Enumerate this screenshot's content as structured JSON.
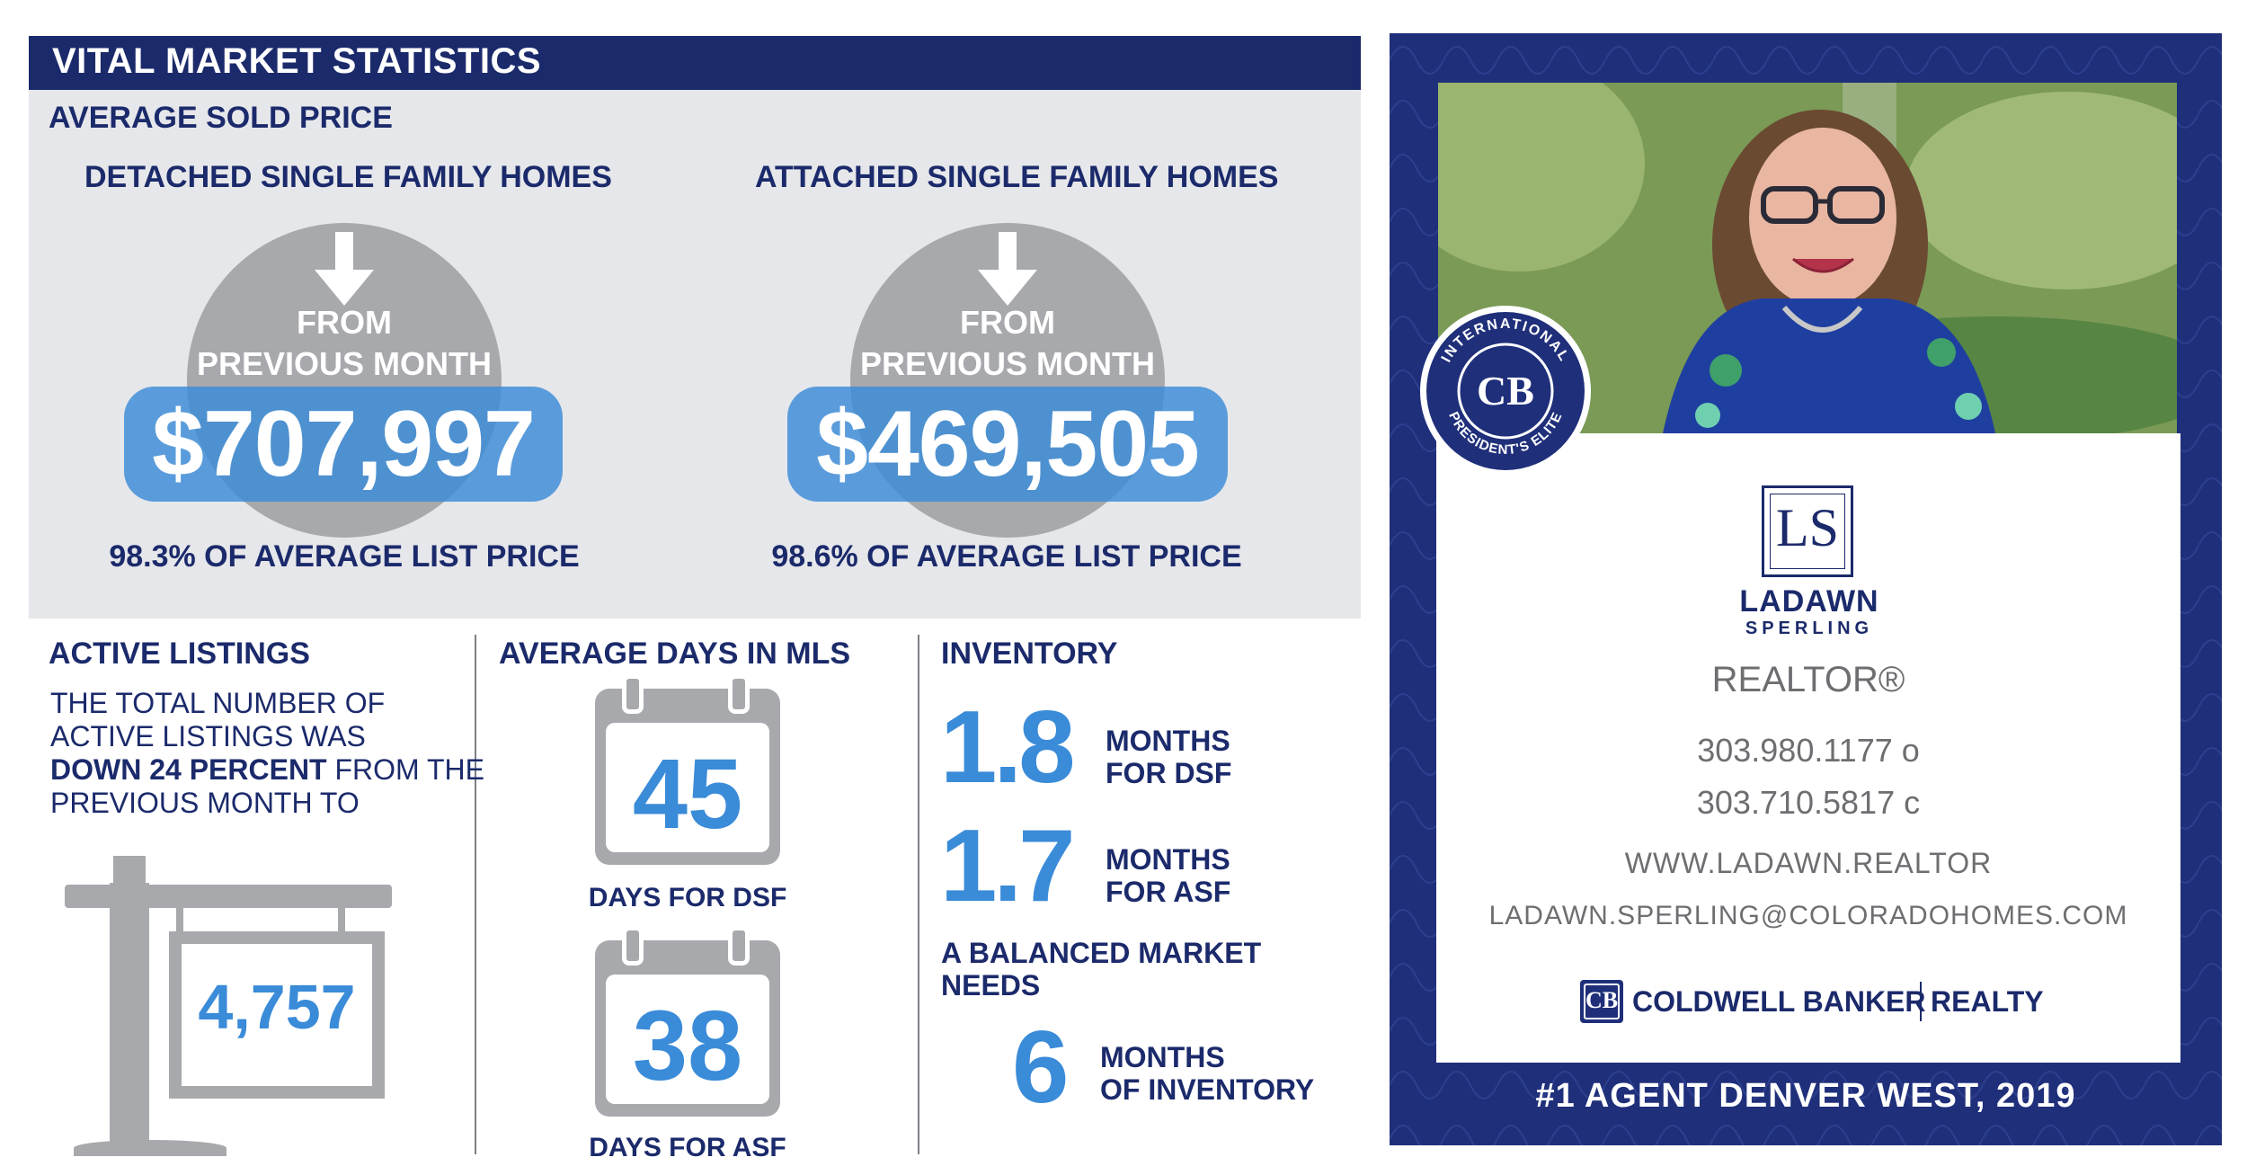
{
  "header": {
    "title": "VITAL MARKET STATISTICS"
  },
  "sold_price": {
    "heading": "AVERAGE SOLD PRICE",
    "detached": {
      "label": "DETACHED SINGLE FAMILY HOMES",
      "change_line1": "FROM",
      "change_line2": "PREVIOUS MONTH",
      "price": "$707,997",
      "pct": "98.3% OF AVERAGE LIST PRICE",
      "direction": "down"
    },
    "attached": {
      "label": "ATTACHED SINGLE FAMILY HOMES",
      "change_line1": "FROM",
      "change_line2": "PREVIOUS MONTH",
      "price": "$469,505",
      "pct": "98.6% OF AVERAGE LIST PRICE",
      "direction": "down"
    }
  },
  "active_listings": {
    "heading": "ACTIVE LISTINGS",
    "line1": "THE TOTAL NUMBER OF",
    "line2": "ACTIVE LISTINGS WAS",
    "line3_bold": "DOWN 24 PERCENT",
    "line3_rest": " FROM THE",
    "line4": "PREVIOUS MONTH TO",
    "value": "4,757"
  },
  "days_in_mls": {
    "heading": "AVERAGE DAYS IN MLS",
    "dsf_value": "45",
    "dsf_label": "DAYS FOR DSF",
    "asf_value": "38",
    "asf_label": "DAYS FOR ASF"
  },
  "inventory": {
    "heading": "INVENTORY",
    "dsf_value": "1.8",
    "dsf_line1": "MONTHS",
    "dsf_line2": "FOR DSF",
    "asf_value": "1.7",
    "asf_line1": "MONTHS",
    "asf_line2": "FOR ASF",
    "balanced_line1": "A BALANCED MARKET",
    "balanced_line2": "NEEDS",
    "balanced_value": "6",
    "balanced_label1": "MONTHS",
    "balanced_label2": "OF INVENTORY"
  },
  "agent": {
    "badge_top": "INTERNATIONAL",
    "badge_bottom": "PRESIDENT'S ELITE",
    "badge_logo": "CB",
    "monogram": "LS",
    "first_name": "LADAWN",
    "last_name": "SPERLING",
    "title": "REALTOR®",
    "phone_office": "303.980.1177 o",
    "phone_cell": "303.710.5817 c",
    "website": "WWW.LADAWN.REALTOR",
    "email": "LADAWN.SPERLING@COLORADOHOMES.COM",
    "brokerage_logo": "CB",
    "brokerage_name": "COLDWELL BANKER",
    "brokerage_suffix": "REALTY",
    "footer": "#1 AGENT DENVER WEST, 2019"
  },
  "colors": {
    "navy": "#1b2a6b",
    "accent_blue": "#3a8bd8",
    "grey": "#a7a9ac",
    "panel": "#e6e7ea"
  }
}
